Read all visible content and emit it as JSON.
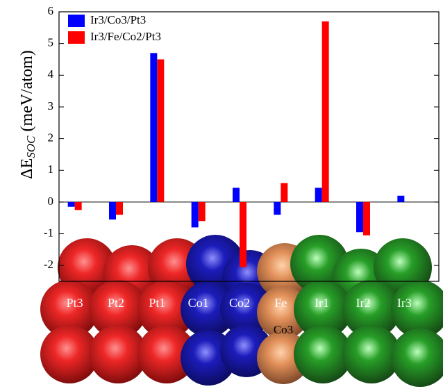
{
  "chart_data": {
    "type": "bar",
    "y_label": {
      "symbol": "ΔE",
      "subscript": "SOC",
      "unit": "(meV/atom)"
    },
    "categories": [
      "Pt3",
      "Pt2",
      "Pt1",
      "Co1",
      "Co2",
      "Fe",
      "Ir1",
      "Ir2",
      "Ir3"
    ],
    "annotation": "Co3",
    "series": [
      {
        "name": "Ir3/Co3/Pt3",
        "color": "#0000ff",
        "values": [
          -0.15,
          -0.55,
          4.7,
          -0.8,
          0.45,
          -0.4,
          0.45,
          -0.95,
          0.2
        ]
      },
      {
        "name": "Ir3/Fe/Co2/Pt3",
        "color": "#ff0000",
        "values": [
          -0.25,
          -0.4,
          4.5,
          -0.6,
          -2.05,
          0.6,
          5.7,
          -1.05,
          null
        ]
      }
    ],
    "ylim": [
      -2.5,
      6
    ],
    "yticks": [
      -2,
      -1,
      0,
      1,
      2,
      3,
      4,
      5,
      6
    ],
    "grid": false,
    "legend": "top-left"
  }
}
